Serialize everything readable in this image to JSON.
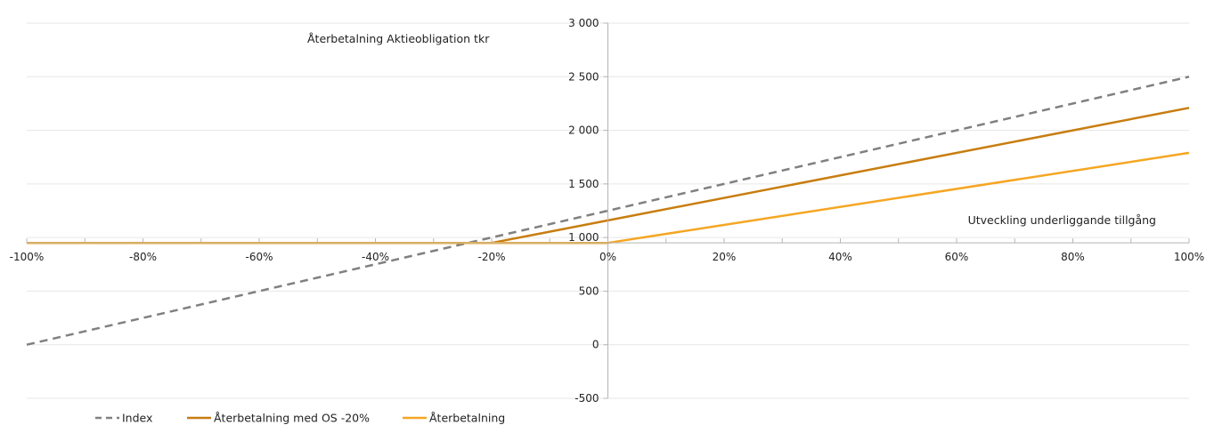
{
  "chart_data": {
    "type": "line",
    "title": "",
    "xlabel": "Utveckling underliggande tillgång",
    "ylabel": "Återbetalning Aktieobligation tkr",
    "x": [
      -1.0,
      -0.2,
      0.0,
      1.0
    ],
    "xlim": [
      -1.0,
      1.0
    ],
    "ylim": [
      -500,
      3000
    ],
    "x_crosses_y_at": 950,
    "x_tick_labels": [
      "-100%",
      "-80%",
      "-60%",
      "-40%",
      "-20%",
      "0%",
      "20%",
      "40%",
      "60%",
      "80%",
      "100%"
    ],
    "x_tick_values": [
      -1.0,
      -0.8,
      -0.6,
      -0.4,
      -0.2,
      0.0,
      0.2,
      0.4,
      0.6,
      0.8,
      1.0
    ],
    "y_tick_labels": [
      "-500",
      "0",
      "500",
      "1 000",
      "1 500",
      "2 000",
      "2 500",
      "3 000"
    ],
    "y_tick_values": [
      -500,
      0,
      500,
      1000,
      1500,
      2000,
      2500,
      3000
    ],
    "grid": "horizontal",
    "legend_position": "bottom-left",
    "series": [
      {
        "name": "Index",
        "style": "dashed",
        "color": "#808080",
        "values": [
          0,
          1000,
          1250,
          2500
        ]
      },
      {
        "name": "Återbetalning med OS -20%",
        "style": "solid",
        "color": "#C87D0F",
        "values": [
          950,
          950,
          1160,
          2210
        ]
      },
      {
        "name": "Återbetalning",
        "style": "solid",
        "color": "#F5A623",
        "values": [
          950,
          950,
          950,
          1790
        ]
      }
    ]
  }
}
